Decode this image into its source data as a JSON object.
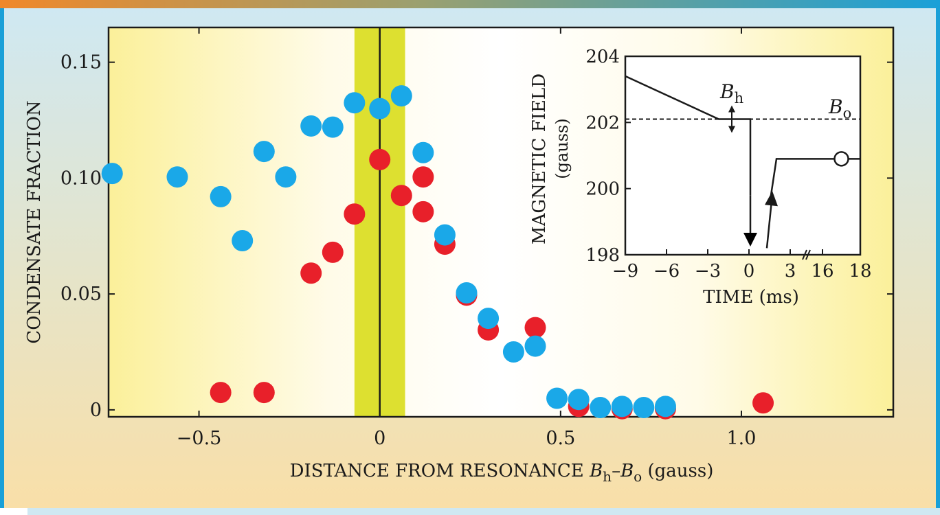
{
  "chart_data": [
    {
      "type": "scatter",
      "title": "",
      "xlabel": "DISTANCE FROM RESONANCE",
      "xlabel_math": {
        "b": "B",
        "h": "h",
        "dash": "–",
        "o": "o",
        "units": "(gauss)"
      },
      "ylabel": "CONDENSATE FRACTION",
      "xlim": [
        -0.75,
        1.42
      ],
      "ylim": [
        -0.003,
        0.165
      ],
      "xticks": [
        -0.5,
        0,
        0.5,
        1.0
      ],
      "xtick_labels": [
        "−0.5",
        "0",
        "0.5",
        "1.0"
      ],
      "yticks": [
        0,
        0.05,
        0.1,
        0.15
      ],
      "ytick_labels": [
        "0",
        "0.05",
        "0.10",
        "0.15"
      ],
      "resonance_band": [
        -0.07,
        0.07
      ],
      "resonance_line": 0,
      "series": [
        {
          "name": "red",
          "color": "#e8202a",
          "points": [
            [
              -0.44,
              0.0075
            ],
            [
              -0.32,
              0.0075
            ],
            [
              -0.19,
              0.059
            ],
            [
              -0.13,
              0.068
            ],
            [
              -0.07,
              0.0845
            ],
            [
              0.0,
              0.108
            ],
            [
              0.06,
              0.0925
            ],
            [
              0.12,
              0.1005
            ],
            [
              0.12,
              0.0855
            ],
            [
              0.18,
              0.0715
            ],
            [
              0.24,
              0.0495
            ],
            [
              0.3,
              0.0345
            ],
            [
              0.43,
              0.0355
            ],
            [
              0.55,
              0.0015
            ],
            [
              0.67,
              0.0005
            ],
            [
              0.79,
              0.0005
            ],
            [
              1.06,
              0.003
            ]
          ]
        },
        {
          "name": "blue",
          "color": "#1aa8e8",
          "points": [
            [
              -0.74,
              0.102
            ],
            [
              -0.56,
              0.1005
            ],
            [
              -0.44,
              0.092
            ],
            [
              -0.38,
              0.073
            ],
            [
              -0.32,
              0.1115
            ],
            [
              -0.26,
              0.1005
            ],
            [
              -0.19,
              0.1225
            ],
            [
              -0.13,
              0.122
            ],
            [
              -0.07,
              0.1325
            ],
            [
              0.0,
              0.13
            ],
            [
              0.06,
              0.1355
            ],
            [
              0.12,
              0.111
            ],
            [
              0.18,
              0.0755
            ],
            [
              0.24,
              0.0505
            ],
            [
              0.3,
              0.0395
            ],
            [
              0.37,
              0.025
            ],
            [
              0.43,
              0.0275
            ],
            [
              0.49,
              0.005
            ],
            [
              0.55,
              0.0045
            ],
            [
              0.61,
              0.001
            ],
            [
              0.67,
              0.0015
            ],
            [
              0.73,
              0.001
            ],
            [
              0.79,
              0.0015
            ]
          ]
        }
      ]
    },
    {
      "type": "line",
      "title": "",
      "inset": true,
      "xlabel": "TIME (ms)",
      "ylabel": "MAGNETIC FIELD",
      "ylabel_units": "(gauss)",
      "xtick_labels": [
        "−9",
        "−6",
        "−3",
        "0",
        "3",
        "16",
        "18"
      ],
      "ytick_labels": [
        "198",
        "200",
        "202",
        "204"
      ],
      "xtick_positions": [
        -9,
        -6,
        -3,
        0,
        3,
        16,
        18
      ],
      "ylim": [
        198,
        204
      ],
      "axis_break_between": [
        "3",
        "16"
      ],
      "bh_label": {
        "b": "B",
        "sub": "h"
      },
      "bo_label": {
        "b": "B",
        "sub": "o"
      },
      "resonance_field_gauss": 202.1,
      "trace_points": [
        [
          -9,
          203.4
        ],
        [
          -2.2,
          202.1
        ],
        [
          0.1,
          202.1
        ],
        [
          0.1,
          199.8
        ],
        [
          0.1,
          198.4
        ],
        [
          1.3,
          198.2
        ],
        [
          1.6,
          199.8
        ],
        [
          2.0,
          200.9
        ],
        [
          17.0,
          200.9
        ],
        [
          18,
          200.9
        ]
      ],
      "open_marker_at": [
        17.0,
        200.9
      ]
    }
  ]
}
